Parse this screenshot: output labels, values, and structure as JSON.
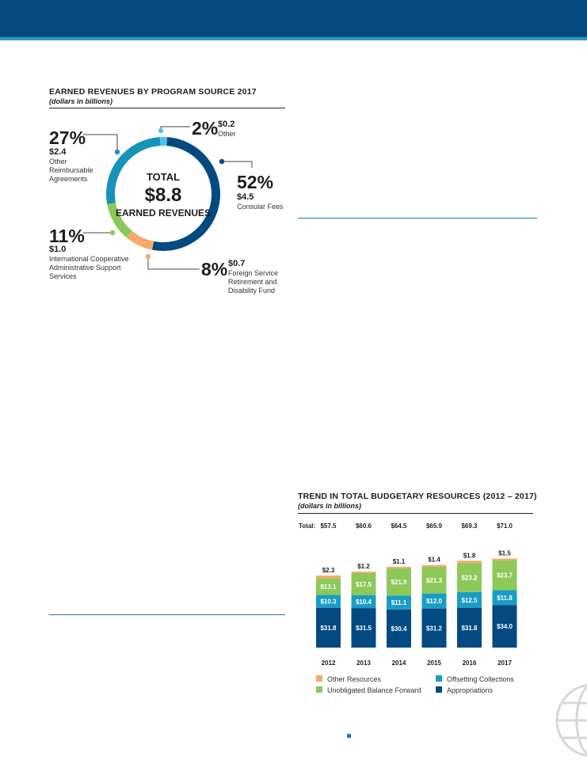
{
  "chart_data": [
    {
      "type": "pie",
      "title": "EARNED REVENUES BY PROGRAM SOURCE 2017",
      "subtitle": "(dollars in billions)",
      "center": {
        "line1": "TOTAL",
        "line2": "$8.8",
        "line3": "EARNED REVENUES"
      },
      "slices": [
        {
          "label": "Consular Fees",
          "pct_label": "52%",
          "value_label": "$4.5",
          "value": 4.5,
          "percent": 52,
          "color": "#034a82"
        },
        {
          "label": "Foreign Service Retirement and Disability Fund",
          "pct_label": "8%",
          "value_label": "$0.7",
          "value": 0.7,
          "percent": 8,
          "color": "#f6a96b"
        },
        {
          "label": "International Cooperative Administrative Support Services",
          "pct_label": "11%",
          "value_label": "$1.0",
          "value": 1.0,
          "percent": 11,
          "color": "#8cc85a"
        },
        {
          "label": "Other Reimbursable Agreements",
          "pct_label": "27%",
          "value_label": "$2.4",
          "value": 2.4,
          "percent": 27,
          "color": "#1693b9"
        },
        {
          "label": "Other",
          "pct_label": "2%",
          "value_label": "$0.2",
          "value": 0.2,
          "percent": 2,
          "color": "#4fc3ea"
        }
      ],
      "desc_lines": {
        "consular": [
          "Consular Fees"
        ],
        "fsrdf": [
          "Foreign Service",
          "Retirement and",
          "Disability Fund"
        ],
        "icass": [
          "International Cooperative",
          "Administrative Support",
          "Services"
        ],
        "ora": [
          "Other",
          "Reimbursable",
          "Agreements"
        ],
        "other": [
          "Other"
        ]
      }
    },
    {
      "type": "bar",
      "stacked": true,
      "title": "TREND IN TOTAL BUDGETARY RESOURCES (2012 – 2017)",
      "subtitle": "(dollars in billions)",
      "total_prefix": "Total:",
      "categories": [
        "2012",
        "2013",
        "2014",
        "2015",
        "2016",
        "2017"
      ],
      "totals": [
        "$57.5",
        "$60.6",
        "$64.5",
        "$65.9",
        "$69.3",
        "$71.0"
      ],
      "series": [
        {
          "name": "Appropriations",
          "color": "#034a82",
          "values": [
            31.8,
            31.5,
            30.4,
            31.2,
            31.8,
            34.0
          ],
          "labels": [
            "$31.8",
            "$31.5",
            "$30.4",
            "$31.2",
            "$31.8",
            "$34.0"
          ]
        },
        {
          "name": "Offsetting Collections",
          "color": "#1a9dc4",
          "values": [
            10.3,
            10.4,
            11.1,
            12.0,
            12.5,
            11.8
          ],
          "labels": [
            "$10.3",
            "$10.4",
            "$11.1",
            "$12.0",
            "$12.5",
            "$11.8"
          ]
        },
        {
          "name": "Unobligated Balance Forward",
          "color": "#8cc85a",
          "values": [
            13.1,
            17.5,
            21.9,
            21.3,
            23.2,
            23.7
          ],
          "labels": [
            "$13.1",
            "$17.5",
            "$21.9",
            "$21.3",
            "$23.2",
            "$23.7"
          ]
        },
        {
          "name": "Other Resources",
          "color": "#f6a96b",
          "values": [
            2.3,
            1.2,
            1.1,
            1.4,
            1.8,
            1.5
          ],
          "labels": [
            "$2.3",
            "$1.2",
            "$1.1",
            "$1.4",
            "$1.8",
            "$1.5"
          ]
        }
      ],
      "legend": [
        {
          "name": "Other Resources",
          "color": "#f6a96b"
        },
        {
          "name": "Offsetting Collections",
          "color": "#1a9dc4"
        },
        {
          "name": "Unobligated Balance Forward",
          "color": "#8cc85a"
        },
        {
          "name": "Appropriations",
          "color": "#034a82"
        }
      ]
    }
  ]
}
